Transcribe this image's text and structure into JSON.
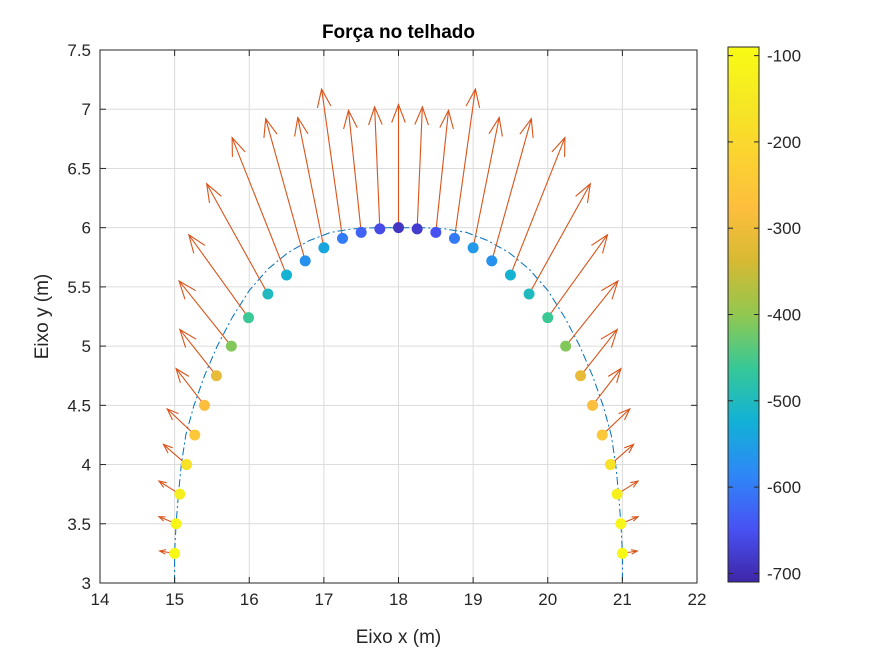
{
  "chart_data": {
    "type": "scatter",
    "title": "Força no telhado",
    "xlabel": "Eixo x (m)",
    "ylabel": "Eixo y (m)",
    "xlim": [
      14,
      22
    ],
    "ylim": [
      3,
      7.5
    ],
    "xticks": [
      14,
      15,
      16,
      17,
      18,
      19,
      20,
      21,
      22
    ],
    "xtick_labels": [
      "14",
      "15",
      "16",
      "17",
      "18",
      "19",
      "20",
      "21",
      "22"
    ],
    "yticks": [
      3,
      3.5,
      4,
      4.5,
      5,
      5.5,
      6,
      6.5,
      7,
      7.5
    ],
    "ytick_labels": [
      "3",
      "3.5",
      "4",
      "4.5",
      "5",
      "5.5",
      "6",
      "6.5",
      "7",
      "7.5"
    ],
    "grid": true,
    "colormap": "parula",
    "clim": [
      -710,
      -90
    ],
    "colorbar_ticks": [
      -100,
      -200,
      -300,
      -400,
      -500,
      -600,
      -700
    ],
    "colorbar_tick_labels": [
      "-100",
      "-200",
      "-300",
      "-400",
      "-500",
      "-600",
      "-700"
    ],
    "arch_line": {
      "style": "dash-dot",
      "color": "#0072bd",
      "x": [
        15.0,
        15.0,
        15.02,
        15.05,
        15.09,
        15.15,
        15.26,
        15.4,
        15.57,
        15.77,
        16.0,
        16.25,
        16.52,
        16.8,
        17.09,
        17.38,
        17.68,
        18.0,
        18.32,
        18.62,
        18.91,
        19.2,
        19.48,
        19.75,
        20.0,
        20.23,
        20.43,
        20.6,
        20.74,
        20.85,
        20.91,
        20.95,
        20.98,
        21.0,
        21.0
      ],
      "y": [
        3.0,
        3.25,
        3.5,
        3.75,
        4.0,
        4.25,
        4.5,
        4.75,
        5.0,
        5.24,
        5.47,
        5.65,
        5.79,
        5.89,
        5.96,
        5.99,
        6.0,
        6.0,
        6.0,
        5.99,
        5.96,
        5.89,
        5.79,
        5.65,
        5.47,
        5.24,
        5.0,
        4.75,
        4.5,
        4.25,
        4.0,
        3.75,
        3.5,
        3.25,
        3.0
      ]
    },
    "points": [
      {
        "x": 15.0,
        "y": 3.25,
        "value": -100,
        "u": -0.2,
        "v": 0.02
      },
      {
        "x": 15.02,
        "y": 3.5,
        "value": -110,
        "u": -0.23,
        "v": 0.06
      },
      {
        "x": 15.07,
        "y": 3.75,
        "value": -130,
        "u": -0.28,
        "v": 0.11
      },
      {
        "x": 15.16,
        "y": 4.0,
        "value": -170,
        "u": -0.31,
        "v": 0.17
      },
      {
        "x": 15.27,
        "y": 4.25,
        "value": -250,
        "u": -0.37,
        "v": 0.22
      },
      {
        "x": 15.4,
        "y": 4.5,
        "value": -280,
        "u": -0.38,
        "v": 0.31
      },
      {
        "x": 15.56,
        "y": 4.75,
        "value": -310,
        "u": -0.49,
        "v": 0.39
      },
      {
        "x": 15.76,
        "y": 5.0,
        "value": -410,
        "u": -0.7,
        "v": 0.55
      },
      {
        "x": 15.99,
        "y": 5.24,
        "value": -460,
        "u": -0.8,
        "v": 0.7
      },
      {
        "x": 16.25,
        "y": 5.44,
        "value": -500,
        "u": -0.82,
        "v": 0.93
      },
      {
        "x": 16.5,
        "y": 5.6,
        "value": -520,
        "u": -0.73,
        "v": 1.16
      },
      {
        "x": 16.75,
        "y": 5.72,
        "value": -570,
        "u": -0.53,
        "v": 1.2
      },
      {
        "x": 17.0,
        "y": 5.83,
        "value": -540,
        "u": -0.35,
        "v": 1.1
      },
      {
        "x": 17.25,
        "y": 5.91,
        "value": -600,
        "u": -0.28,
        "v": 1.26
      },
      {
        "x": 17.5,
        "y": 5.96,
        "value": -630,
        "u": -0.17,
        "v": 1.03
      },
      {
        "x": 17.75,
        "y": 5.99,
        "value": -660,
        "u": -0.07,
        "v": 1.03
      },
      {
        "x": 18.0,
        "y": 6.0,
        "value": -690,
        "u": 0.0,
        "v": 1.04
      },
      {
        "x": 18.25,
        "y": 5.99,
        "value": -680,
        "u": 0.07,
        "v": 1.03
      },
      {
        "x": 18.5,
        "y": 5.96,
        "value": -650,
        "u": 0.17,
        "v": 1.03
      },
      {
        "x": 18.75,
        "y": 5.91,
        "value": -600,
        "u": 0.28,
        "v": 1.26
      },
      {
        "x": 19.0,
        "y": 5.83,
        "value": -560,
        "u": 0.35,
        "v": 1.1
      },
      {
        "x": 19.25,
        "y": 5.72,
        "value": -570,
        "u": 0.53,
        "v": 1.2
      },
      {
        "x": 19.5,
        "y": 5.6,
        "value": -520,
        "u": 0.73,
        "v": 1.16
      },
      {
        "x": 19.75,
        "y": 5.44,
        "value": -500,
        "u": 0.82,
        "v": 0.93
      },
      {
        "x": 20.0,
        "y": 5.24,
        "value": -460,
        "u": 0.8,
        "v": 0.7
      },
      {
        "x": 20.24,
        "y": 5.0,
        "value": -410,
        "u": 0.7,
        "v": 0.55
      },
      {
        "x": 20.44,
        "y": 4.75,
        "value": -310,
        "u": 0.49,
        "v": 0.39
      },
      {
        "x": 20.6,
        "y": 4.5,
        "value": -280,
        "u": 0.38,
        "v": 0.31
      },
      {
        "x": 20.73,
        "y": 4.25,
        "value": -250,
        "u": 0.37,
        "v": 0.22
      },
      {
        "x": 20.84,
        "y": 4.0,
        "value": -170,
        "u": 0.31,
        "v": 0.17
      },
      {
        "x": 20.93,
        "y": 3.75,
        "value": -130,
        "u": 0.28,
        "v": 0.11
      },
      {
        "x": 20.98,
        "y": 3.5,
        "value": -110,
        "u": 0.23,
        "v": 0.06
      },
      {
        "x": 21.0,
        "y": 3.25,
        "value": -100,
        "u": 0.2,
        "v": 0.02
      }
    ],
    "arrow_color": "#d95319"
  }
}
